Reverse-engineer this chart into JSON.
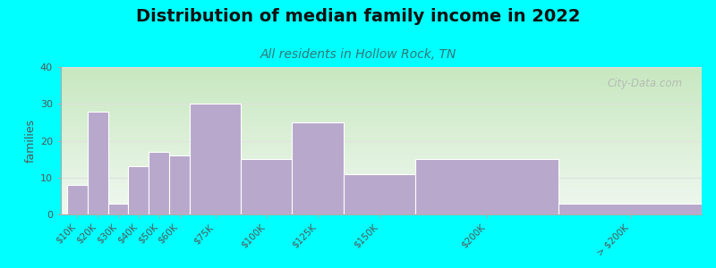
{
  "title": "Distribution of median family income in 2022",
  "subtitle": "All residents in Hollow Rock, TN",
  "ylabel": "families",
  "background_outer": "#00FFFF",
  "bar_color": "#b8a8cc",
  "bar_edge_color": "#ffffff",
  "title_fontsize": 14,
  "subtitle_fontsize": 10,
  "subtitle_color": "#337777",
  "ylabel_fontsize": 9,
  "categories": [
    "$10K",
    "$20K",
    "$30K",
    "$40K",
    "$50K",
    "$60K",
    "$75K",
    "$100K",
    "$125K",
    "$150K",
    "$200K",
    "> $200K"
  ],
  "values": [
    8,
    28,
    3,
    13,
    17,
    16,
    30,
    15,
    25,
    11,
    15,
    3
  ],
  "bar_lefts": [
    0,
    1,
    2,
    3,
    4,
    5,
    6,
    8.5,
    11,
    13.5,
    17,
    24
  ],
  "bar_widths": [
    1,
    1,
    1,
    1,
    1,
    1,
    2.5,
    2.5,
    2.5,
    3.5,
    7,
    7
  ],
  "xlim": [
    -0.3,
    31
  ],
  "ylim": [
    0,
    40
  ],
  "yticks": [
    0,
    10,
    20,
    30,
    40
  ],
  "watermark_text": "City-Data.com",
  "tick_label_color": "#555555",
  "axis_color": "#aaaaaa",
  "bg_top_color": "#c8e8c0",
  "bg_bot_color": "#f0f8f0"
}
